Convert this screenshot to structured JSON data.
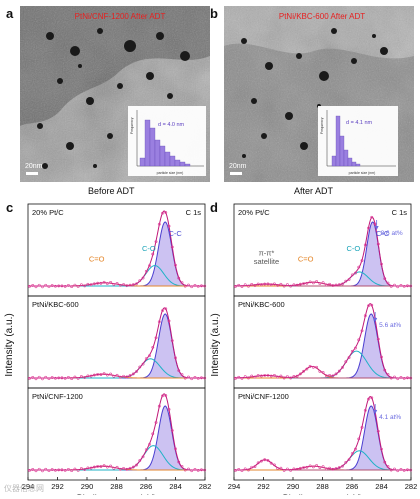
{
  "panels": {
    "a": {
      "letter": "a",
      "title": "PtNi/CNF-1200 After ADT",
      "scale_bar": "20nm",
      "caption": "Before ADT",
      "inset": {
        "d_label": "d = 4.0 nm",
        "xlabel": "particle size (nm)",
        "ylabel": "Frequency",
        "xticks": [
          "1",
          "2",
          "3",
          "4",
          "5",
          "6",
          "7",
          "8",
          "9",
          "10"
        ]
      }
    },
    "b": {
      "letter": "b",
      "title": "PtNi/KBC-600 After ADT",
      "scale_bar": "20nm",
      "caption": "After ADT",
      "inset": {
        "d_label": "d = 4.1 nm",
        "xlabel": "particle size (nm)",
        "ylabel": "Frequency",
        "xticks": [
          "0",
          "2",
          "4",
          "6",
          "8",
          "10",
          "12",
          "14",
          "16",
          "18",
          "20"
        ]
      }
    },
    "c": {
      "letter": "c"
    },
    "d": {
      "letter": "d"
    }
  },
  "chart_data": [
    {
      "type": "line",
      "panel": "c",
      "xlabel": "Binding energy (eV)",
      "ylabel": "Intensity (a.u.)",
      "xticks": [
        "294",
        "292",
        "290",
        "288",
        "286",
        "284",
        "282"
      ],
      "xlim": [
        294,
        282
      ],
      "subplots": [
        {
          "sample": "20% Pt/C",
          "edge_label": "C 1s",
          "peaks": [
            "C=O",
            "C-O",
            "C-C"
          ],
          "note": ""
        },
        {
          "sample": "PtNi/KBC-600",
          "edge_label": "",
          "peaks": [],
          "note": ""
        },
        {
          "sample": "PtNi/CNF-1200",
          "edge_label": "",
          "peaks": [],
          "note": ""
        }
      ]
    },
    {
      "type": "line",
      "panel": "d",
      "xlabel": "Binding energy (eV)",
      "ylabel": "Intensity (a.u.)",
      "xticks": [
        "294",
        "292",
        "290",
        "288",
        "286",
        "284",
        "282"
      ],
      "xlim": [
        294,
        282
      ],
      "subplots": [
        {
          "sample": "20% Pt/C",
          "edge_label": "C 1s",
          "peaks": [
            "π-π*",
            "satellite",
            "C=O",
            "C-O",
            "C-C"
          ],
          "note": "8.6 at%"
        },
        {
          "sample": "PtNi/KBC-600",
          "edge_label": "",
          "peaks": [],
          "note": "5.6 at%"
        },
        {
          "sample": "PtNi/CNF-1200",
          "edge_label": "",
          "peaks": [],
          "note": "4.1 at%"
        }
      ]
    }
  ],
  "colors": {
    "raw_points": "#e0409a",
    "envelope": "#c01878",
    "cc_fill": "#b7a8ec",
    "cc_line": "#4b3ed0",
    "co_line": "#1fb2c6",
    "cdo_line": "#e3862e",
    "pipi_line": "#b05070",
    "baseline": "#444444",
    "at_note": "#6a6ae0",
    "label_cc": "#4a4ad4",
    "label_co": "#19a3b8",
    "label_cdo": "#e38222",
    "label_pipi": "#555555",
    "inset_bar": "#9a7fe0"
  },
  "watermark": "仪器信息网"
}
